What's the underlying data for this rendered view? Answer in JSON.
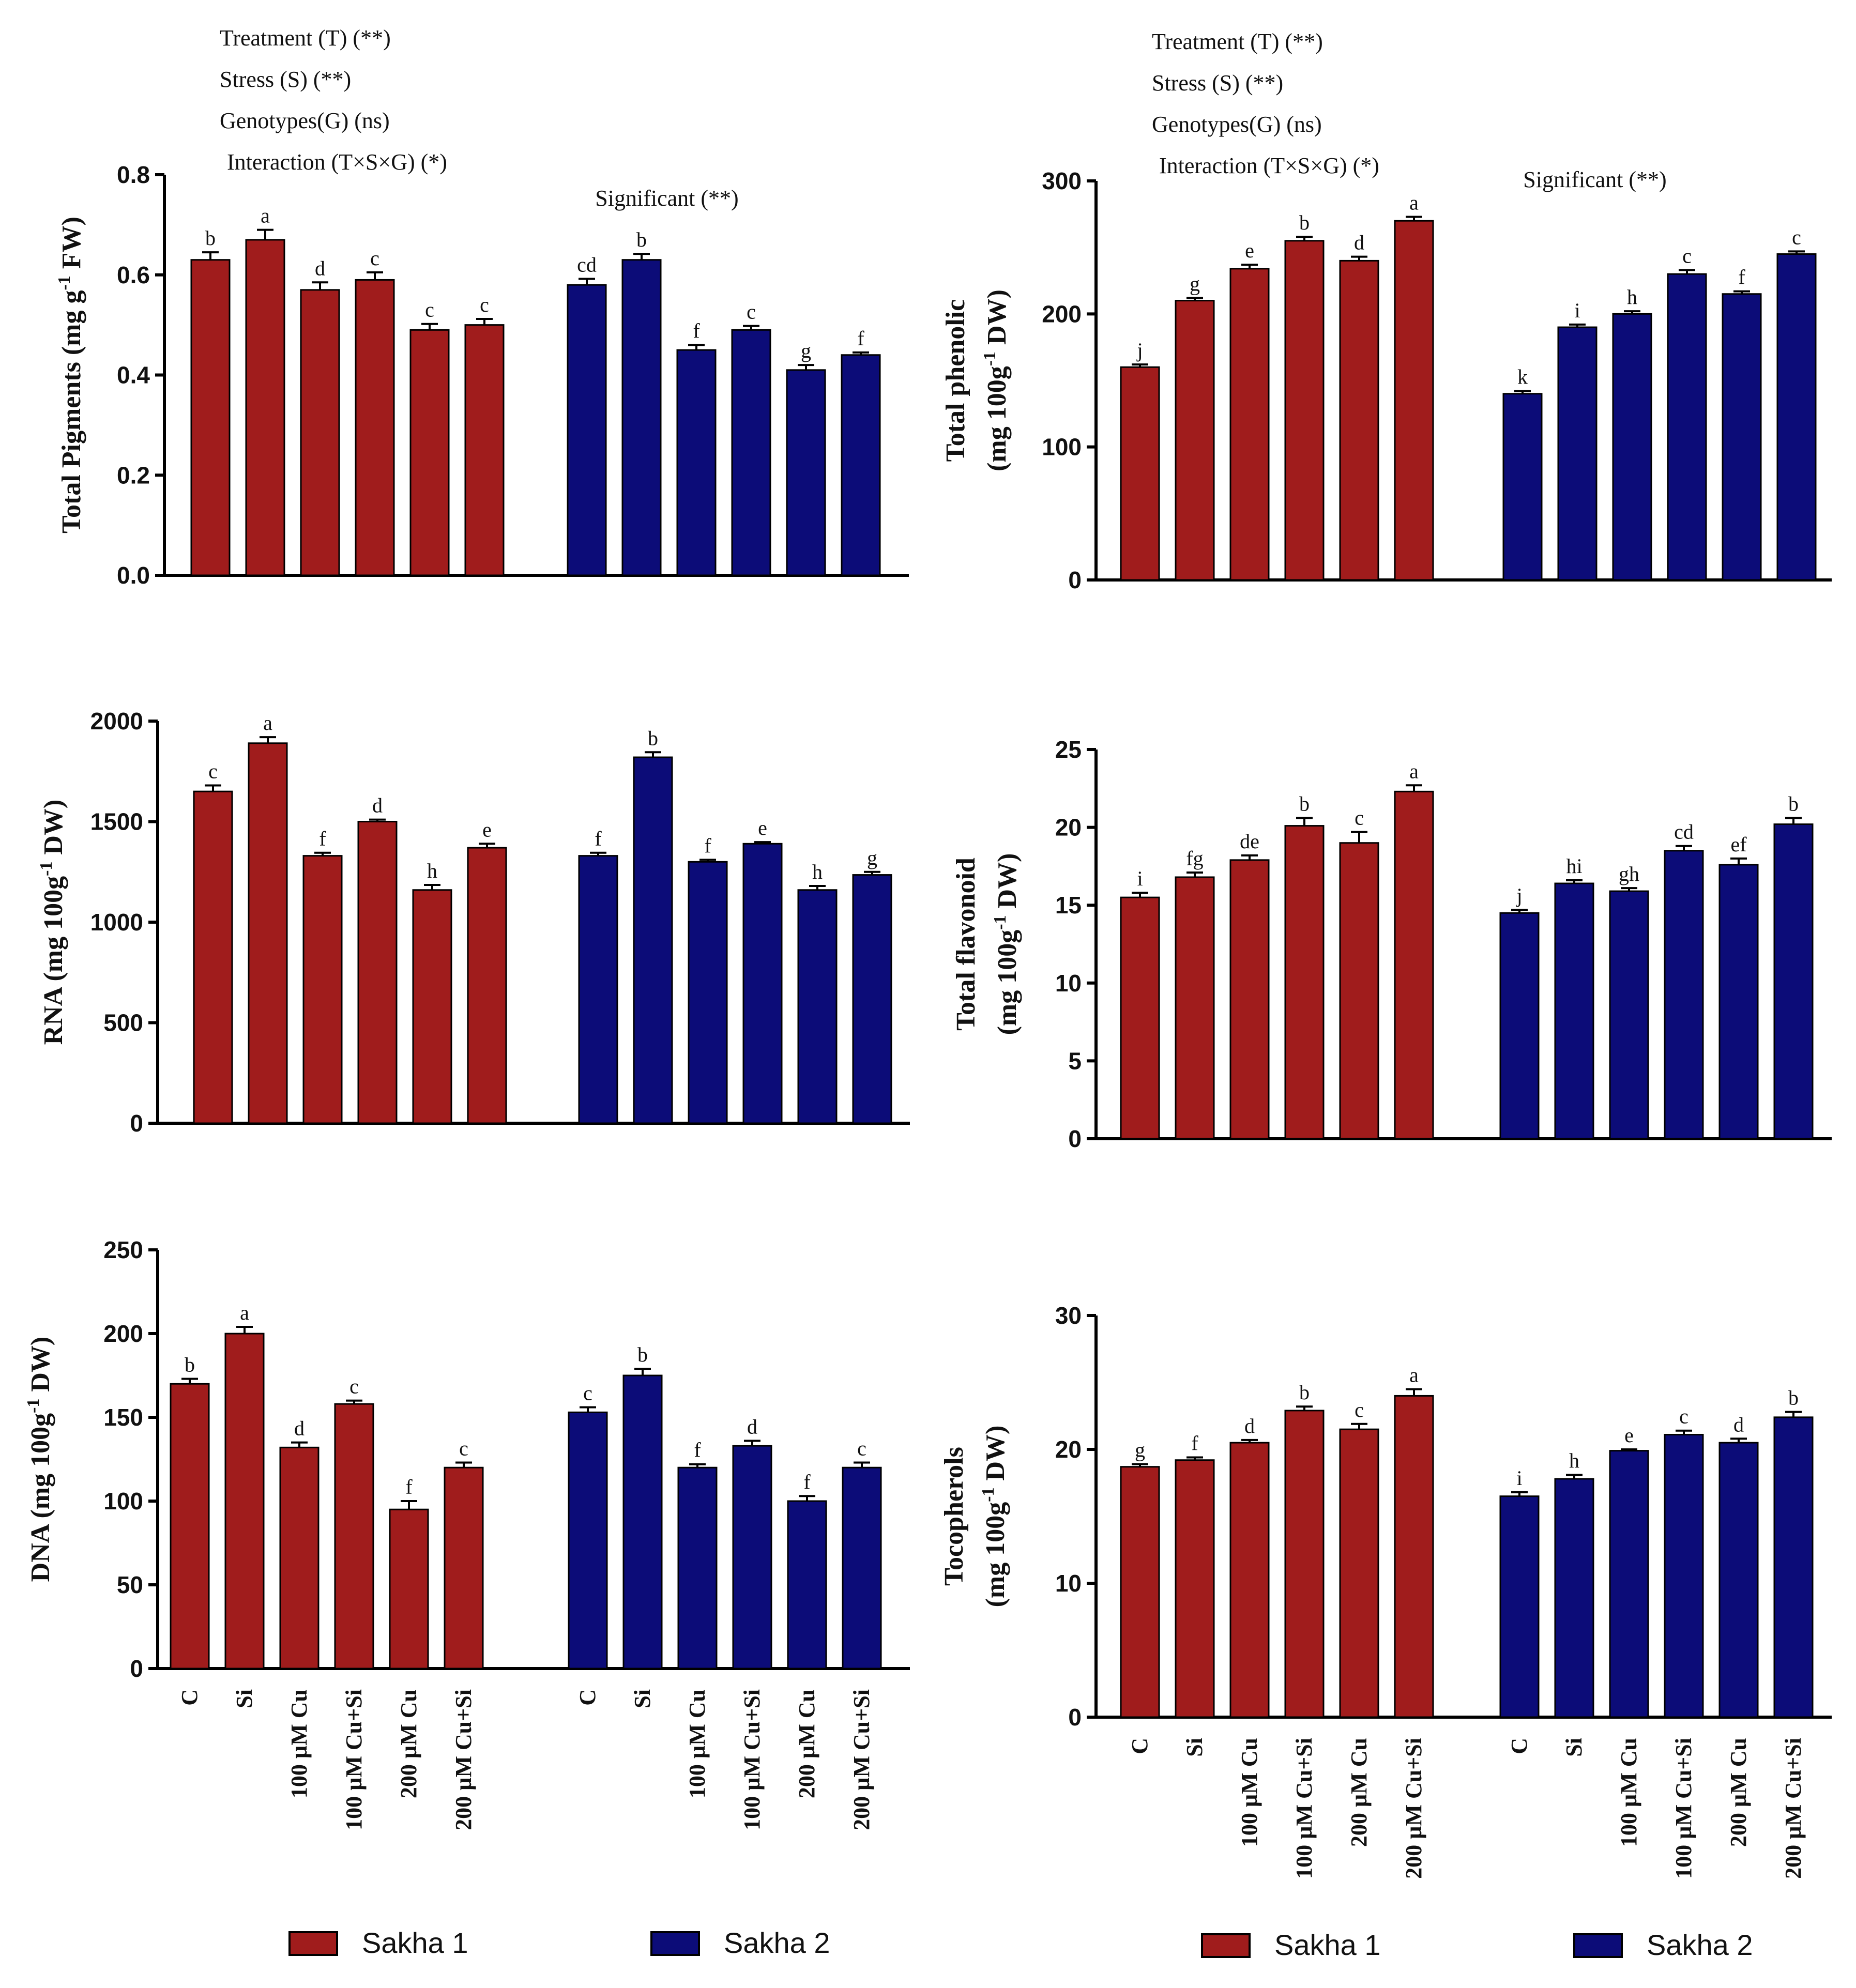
{
  "colors": {
    "sakha1": "#A01C1C",
    "sakha2": "#0C0C78",
    "axis": "#000000",
    "text": "#111111"
  },
  "categories": [
    "C",
    "Si",
    "100 µM Cu",
    "100 µM Cu+Si",
    "200 µM Cu",
    "200 µM Cu+Si"
  ],
  "legends": [
    {
      "series": [
        "Sakha 1",
        "Sakha 2"
      ]
    },
    {
      "series": [
        "Sakha 1",
        "Sakha 2"
      ]
    }
  ],
  "chart_data": [
    {
      "type": "bar",
      "title": "",
      "ylabel_main": "Total Pigments (mg g",
      "ylabel_sup": "-1",
      "ylabel_end": " FW)",
      "ylabel2": "",
      "ylim": [
        0,
        0.8
      ],
      "yticks": [
        0.0,
        0.2,
        0.4,
        0.6,
        0.8
      ],
      "ytick_labels": [
        "0.0",
        "0.2",
        "0.4",
        "0.6",
        "0.8"
      ],
      "stats": [
        "Treatment (T) (**)",
        "Stress (S) (**)",
        "Genotypes(G) (ns)",
        "Interaction (T×S×G) (*)"
      ],
      "significance": "Significant (**)",
      "series": [
        {
          "name": "Sakha 1",
          "values": [
            0.63,
            0.67,
            0.57,
            0.59,
            0.49,
            0.5
          ],
          "errors": [
            0.015,
            0.02,
            0.015,
            0.015,
            0.012,
            0.012
          ],
          "letters": [
            "b",
            "a",
            "d",
            "c",
            "c",
            "c"
          ]
        },
        {
          "name": "Sakha 2",
          "values": [
            0.58,
            0.63,
            0.45,
            0.49,
            0.41,
            0.44
          ],
          "errors": [
            0.012,
            0.012,
            0.01,
            0.008,
            0.01,
            0.005
          ],
          "letters": [
            "cd",
            "b",
            "f",
            "c",
            "g",
            "f"
          ]
        }
      ]
    },
    {
      "type": "bar",
      "title": "",
      "ylabel_main": "Total phenolic",
      "ylabel2_main": "(mg 100g",
      "ylabel2_sup": "-1",
      "ylabel2_end": " DW)",
      "ylim": [
        0,
        300
      ],
      "yticks": [
        0,
        100,
        200,
        300
      ],
      "ytick_labels": [
        "0",
        "100",
        "200",
        "300"
      ],
      "stats": [
        "Treatment (T) (**)",
        "Stress (S) (**)",
        "Genotypes(G) (ns)",
        "Interaction (T×S×G) (*)"
      ],
      "significance": "Significant (**)",
      "series": [
        {
          "name": "Sakha 1",
          "values": [
            160,
            210,
            234,
            255,
            240,
            270
          ],
          "errors": [
            2,
            2,
            3,
            3,
            3,
            3
          ],
          "letters": [
            "j",
            "g",
            "e",
            "b",
            "d",
            "a"
          ]
        },
        {
          "name": "Sakha 2",
          "values": [
            140,
            190,
            200,
            230,
            215,
            245
          ],
          "errors": [
            2,
            2,
            2,
            3,
            2,
            2
          ],
          "letters": [
            "k",
            "i",
            "h",
            "c",
            "f",
            "c"
          ]
        }
      ]
    },
    {
      "type": "bar",
      "title": "",
      "ylabel_main": "RNA (mg 100g",
      "ylabel_sup": "-1",
      "ylabel_end": " DW)",
      "ylabel2": "",
      "ylim": [
        0,
        2000
      ],
      "yticks": [
        0,
        500,
        1000,
        1500,
        2000
      ],
      "ytick_labels": [
        "0",
        "500",
        "1000",
        "1500",
        "2000"
      ],
      "stats": [],
      "significance": "",
      "series": [
        {
          "name": "Sakha 1",
          "values": [
            1650,
            1890,
            1330,
            1500,
            1160,
            1370
          ],
          "errors": [
            30,
            30,
            15,
            10,
            25,
            20
          ],
          "letters": [
            "c",
            "a",
            "f",
            "d",
            "h",
            "e"
          ]
        },
        {
          "name": "Sakha 2",
          "values": [
            1330,
            1820,
            1300,
            1390,
            1160,
            1235
          ],
          "errors": [
            15,
            25,
            10,
            8,
            20,
            15
          ],
          "letters": [
            "f",
            "b",
            "f",
            "e",
            "h",
            "g"
          ]
        }
      ]
    },
    {
      "type": "bar",
      "title": "",
      "ylabel_main": "Total flavonoid",
      "ylabel2_main": "(mg 100g",
      "ylabel2_sup": "-1",
      "ylabel2_end": " DW)",
      "ylim": [
        0,
        25
      ],
      "yticks": [
        0,
        5,
        10,
        15,
        20,
        25
      ],
      "ytick_labels": [
        "0",
        "5",
        "10",
        "15",
        "20",
        "25"
      ],
      "stats": [],
      "significance": "",
      "series": [
        {
          "name": "Sakha 1",
          "values": [
            15.5,
            16.8,
            17.9,
            20.1,
            19.0,
            22.3
          ],
          "errors": [
            0.3,
            0.3,
            0.3,
            0.5,
            0.7,
            0.4
          ],
          "letters": [
            "i",
            "fg",
            "de",
            "b",
            "c",
            "a"
          ]
        },
        {
          "name": "Sakha 2",
          "values": [
            14.5,
            16.4,
            15.9,
            18.5,
            17.6,
            20.2
          ],
          "errors": [
            0.2,
            0.2,
            0.2,
            0.3,
            0.4,
            0.4
          ],
          "letters": [
            "j",
            "hi",
            "gh",
            "cd",
            "ef",
            "b"
          ]
        }
      ]
    },
    {
      "type": "bar",
      "title": "",
      "ylabel_main": "DNA (mg 100g",
      "ylabel_sup": "-1",
      "ylabel_end": " DW)",
      "ylabel2": "",
      "ylim": [
        0,
        250
      ],
      "yticks": [
        0,
        50,
        100,
        150,
        200,
        250
      ],
      "ytick_labels": [
        "0",
        "50",
        "100",
        "150",
        "200",
        "250"
      ],
      "stats": [],
      "significance": "",
      "series": [
        {
          "name": "Sakha 1",
          "values": [
            170,
            200,
            132,
            158,
            95,
            120
          ],
          "errors": [
            3,
            4,
            3,
            2,
            5,
            3
          ],
          "letters": [
            "b",
            "a",
            "d",
            "c",
            "f",
            "c"
          ]
        },
        {
          "name": "Sakha 2",
          "values": [
            153,
            175,
            120,
            133,
            100,
            120
          ],
          "errors": [
            3,
            4,
            2,
            3,
            3,
            3
          ],
          "letters": [
            "c",
            "b",
            "f",
            "d",
            "f",
            "c"
          ]
        }
      ]
    },
    {
      "type": "bar",
      "title": "",
      "ylabel_main": "Tocopherols",
      "ylabel2_main": "(mg 100g",
      "ylabel2_sup": "-1",
      "ylabel2_end": " DW)",
      "ylim": [
        0,
        30
      ],
      "yticks": [
        0,
        10,
        20,
        30
      ],
      "ytick_labels": [
        "0",
        "10",
        "20",
        "30"
      ],
      "stats": [],
      "significance": "",
      "series": [
        {
          "name": "Sakha 1",
          "values": [
            18.7,
            19.2,
            20.5,
            22.9,
            21.5,
            24.0
          ],
          "errors": [
            0.2,
            0.2,
            0.2,
            0.3,
            0.4,
            0.5
          ],
          "letters": [
            "g",
            "f",
            "d",
            "b",
            "c",
            "a"
          ]
        },
        {
          "name": "Sakha 2",
          "values": [
            16.5,
            17.8,
            19.9,
            21.1,
            20.5,
            22.4
          ],
          "errors": [
            0.3,
            0.3,
            0.1,
            0.3,
            0.3,
            0.4
          ],
          "letters": [
            "i",
            "h",
            "e",
            "c",
            "d",
            "b"
          ]
        }
      ]
    }
  ]
}
